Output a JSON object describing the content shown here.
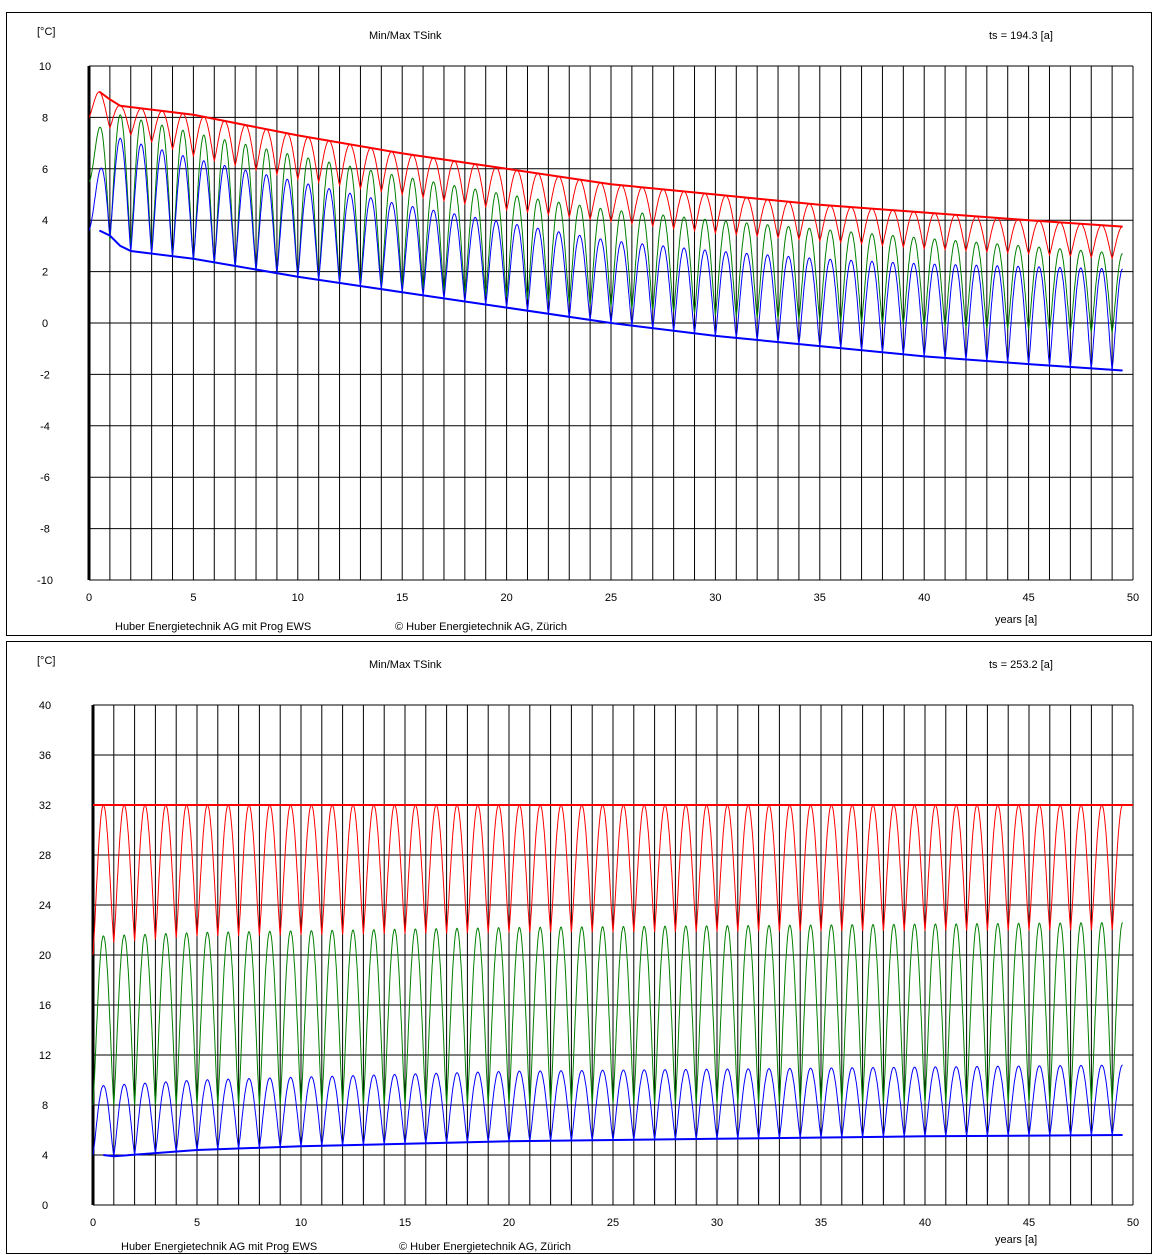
{
  "chart_data": [
    {
      "type": "line",
      "title": "Min/Max TSink",
      "unit_label": "[°C]",
      "ts_label": "ts = 194.3 [a]",
      "xlabel": "years [a]",
      "footer_left": "Huber Energietechnik AG mit Prog EWS",
      "footer_right": "© Huber Energietechnik AG, Zürich",
      "xlim": [
        0,
        50
      ],
      "ylim": [
        -10,
        10
      ],
      "x_ticks": [
        0,
        5,
        10,
        15,
        20,
        25,
        30,
        35,
        40,
        45,
        50
      ],
      "y_ticks": [
        10,
        8,
        6,
        4,
        2,
        0,
        -2,
        -4,
        -6,
        -8,
        -10
      ],
      "grid": true,
      "colors": {
        "max": "#ff0000",
        "mean": "#008000",
        "min": "#0000ff"
      },
      "series": [
        {
          "role": "max",
          "envelope": [
            [
              0.5,
              9.0
            ],
            [
              1,
              8.7
            ],
            [
              1.5,
              8.45
            ],
            [
              5,
              8.1
            ],
            [
              10,
              7.3
            ],
            [
              15,
              6.6
            ],
            [
              20,
              6.0
            ],
            [
              25,
              5.4
            ],
            [
              30,
              5.0
            ],
            [
              35,
              4.6
            ],
            [
              40,
              4.3
            ],
            [
              45,
              4.0
            ],
            [
              49.5,
              3.75
            ]
          ],
          "trough": [
            [
              0,
              8.0
            ],
            [
              1,
              7.6
            ],
            [
              5,
              6.5
            ],
            [
              10,
              5.6
            ],
            [
              20,
              4.4
            ],
            [
              30,
              3.5
            ],
            [
              40,
              2.9
            ],
            [
              49.5,
              2.5
            ]
          ]
        },
        {
          "role": "mean",
          "envelope": [
            [
              0,
              7.0
            ],
            [
              1,
              8.2
            ],
            [
              5,
              7.4
            ],
            [
              10,
              6.5
            ],
            [
              15,
              5.7
            ],
            [
              20,
              5.0
            ],
            [
              25,
              4.4
            ],
            [
              30,
              4.0
            ],
            [
              40,
              3.3
            ],
            [
              49.5,
              2.7
            ]
          ],
          "trough": [
            [
              0,
              5.5
            ],
            [
              1,
              3.2
            ],
            [
              5,
              2.4
            ],
            [
              10,
              1.8
            ],
            [
              20,
              1.0
            ],
            [
              30,
              0.3
            ],
            [
              40,
              -0.1
            ],
            [
              49.5,
              -0.4
            ]
          ]
        },
        {
          "role": "min",
          "envelope": [
            [
              0,
              4.5
            ],
            [
              1,
              7.3
            ],
            [
              5,
              6.4
            ],
            [
              10,
              5.5
            ],
            [
              15,
              4.6
            ],
            [
              20,
              3.9
            ],
            [
              25,
              3.2
            ],
            [
              30,
              2.8
            ],
            [
              35,
              2.5
            ],
            [
              40,
              2.3
            ],
            [
              49.5,
              2.1
            ]
          ],
          "trough": [
            [
              0.5,
              3.6
            ],
            [
              1,
              3.4
            ],
            [
              1.5,
              3.0
            ],
            [
              2,
              2.8
            ],
            [
              5,
              2.5
            ],
            [
              10,
              1.8
            ],
            [
              15,
              1.2
            ],
            [
              20,
              0.6
            ],
            [
              25,
              0.0
            ],
            [
              30,
              -0.5
            ],
            [
              35,
              -0.9
            ],
            [
              40,
              -1.3
            ],
            [
              45,
              -1.6
            ],
            [
              49.5,
              -1.85
            ]
          ]
        }
      ]
    },
    {
      "type": "line",
      "title": "Min/Max TSink",
      "unit_label": "[°C]",
      "ts_label": "ts = 253.2 [a]",
      "xlabel": "years [a]",
      "footer_left": "Huber Energietechnik AG mit Prog EWS",
      "footer_right": "© Huber Energietechnik AG, Zürich",
      "xlim": [
        0,
        50
      ],
      "ylim": [
        0,
        40
      ],
      "x_ticks": [
        0,
        5,
        10,
        15,
        20,
        25,
        30,
        35,
        40,
        45,
        50
      ],
      "y_ticks": [
        40,
        36,
        32,
        28,
        24,
        20,
        16,
        12,
        8,
        4,
        0
      ],
      "grid": true,
      "colors": {
        "max": "#ff0000",
        "mean": "#008000",
        "min": "#0000ff"
      },
      "series": [
        {
          "role": "max",
          "envelope": [
            [
              0,
              32
            ],
            [
              50,
              32
            ]
          ],
          "trough": [
            [
              0,
              20
            ],
            [
              1,
              21
            ],
            [
              5,
              21.5
            ],
            [
              20,
              21.8
            ],
            [
              49.5,
              22
            ]
          ]
        },
        {
          "role": "mean",
          "envelope": [
            [
              0,
              21.5
            ],
            [
              5,
              21.8
            ],
            [
              20,
              22.2
            ],
            [
              49.5,
              22.6
            ]
          ],
          "trough": [
            [
              0,
              8
            ],
            [
              5,
              8
            ],
            [
              49.5,
              8.2
            ]
          ]
        },
        {
          "role": "min",
          "envelope": [
            [
              0,
              9.5
            ],
            [
              5,
              10
            ],
            [
              20,
              10.7
            ],
            [
              49.5,
              11.2
            ]
          ],
          "trough": [
            [
              0.5,
              4
            ],
            [
              1,
              3.9
            ],
            [
              5,
              4.4
            ],
            [
              10,
              4.7
            ],
            [
              20,
              5.1
            ],
            [
              30,
              5.3
            ],
            [
              40,
              5.5
            ],
            [
              49.5,
              5.6
            ]
          ]
        }
      ]
    }
  ]
}
